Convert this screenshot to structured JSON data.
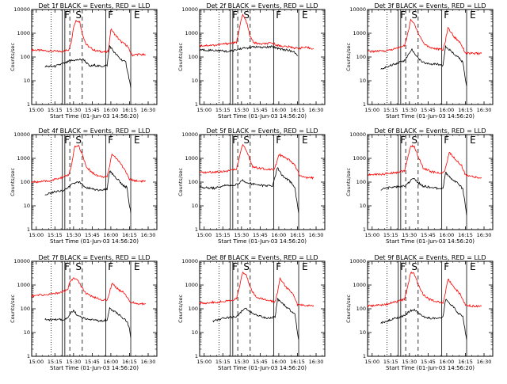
{
  "chart_data": [
    {
      "type": "line",
      "title": "Det 1f BLACK = Events, RED = LLD",
      "xlabel": "Start Time (01-Jun-03 14:56:20)",
      "ylabel": "Counts/sec",
      "xticks": [
        "15:00",
        "15:15",
        "15:30",
        "15:45",
        "16:00",
        "16:15",
        "16:30"
      ],
      "xlim": [
        "14:56:20",
        "16:37"
      ],
      "yscale": "log",
      "ylim": [
        1,
        10000
      ],
      "yticks": [
        "1",
        "10",
        "100",
        "1000",
        "10000"
      ],
      "markers": [
        "F",
        "S",
        "F",
        "E"
      ],
      "series": [
        {
          "color": "#ff0000",
          "x": [
            "14:56:20",
            "15:10",
            "15:20",
            "15:26",
            "15:28",
            "15:30",
            "15:32",
            "15:35",
            "15:37",
            "15:40",
            "15:43",
            "15:47",
            "15:52",
            "15:57",
            "15:58",
            "16:00",
            "16:04",
            "16:08",
            "16:13",
            "16:17",
            "16:22",
            "16:28"
          ],
          "y": [
            200,
            180,
            170,
            200,
            400,
            1800,
            3500,
            3000,
            1000,
            350,
            250,
            190,
            170,
            160,
            180,
            1500,
            800,
            450,
            300,
            120,
            130,
            120
          ]
        },
        {
          "color": "#000000",
          "x": [
            "15:07",
            "15:15",
            "15:20",
            "15:25",
            "15:27",
            "15:38",
            "15:43",
            "15:47",
            "15:52",
            "15:57",
            "15:59",
            "16:03",
            "16:08",
            "16:12",
            "16:15",
            "16:16"
          ],
          "y": [
            40,
            40,
            50,
            60,
            70,
            80,
            40,
            45,
            40,
            45,
            300,
            150,
            80,
            60,
            10,
            5
          ]
        }
      ]
    },
    {
      "type": "line",
      "title": "Det 2f BLACK = Events, RED = LLD",
      "xlabel": "Start Time (01-Jun-03 14:56:20)",
      "ylabel": "Counts/sec",
      "xticks": [
        "15:00",
        "15:15",
        "15:30",
        "15:45",
        "16:00",
        "16:15",
        "16:30"
      ],
      "xlim": [
        "14:56:20",
        "16:37"
      ],
      "yscale": "log",
      "ylim": [
        1,
        10000
      ],
      "yticks": [
        "1",
        "10",
        "100",
        "1000",
        "10000"
      ],
      "markers": [
        "F",
        "S",
        "F",
        "E"
      ],
      "series": [
        {
          "color": "#ff0000",
          "x": [
            "14:56:20",
            "15:10",
            "15:20",
            "15:26",
            "15:29",
            "15:31",
            "15:34",
            "15:37",
            "15:40",
            "15:45",
            "15:55",
            "16:00",
            "16:10",
            "16:15",
            "16:20",
            "16:28"
          ],
          "y": [
            300,
            320,
            380,
            400,
            2500,
            6000,
            3000,
            700,
            400,
            350,
            380,
            300,
            260,
            230,
            250,
            230
          ]
        },
        {
          "color": "#000000",
          "x": [
            "14:56:20",
            "15:10",
            "15:20",
            "15:26",
            "15:30",
            "15:35",
            "15:40",
            "15:45",
            "15:55",
            "16:00",
            "16:05",
            "16:10",
            "16:13",
            "16:15"
          ],
          "y": [
            200,
            190,
            170,
            200,
            230,
            240,
            270,
            250,
            270,
            230,
            200,
            180,
            150,
            110
          ]
        }
      ]
    },
    {
      "type": "line",
      "title": "Det 3f BLACK = Events, RED = LLD",
      "xlabel": "Start Time (01-Jun-03 14:56:20)",
      "ylabel": "Counts/sec",
      "xticks": [
        "15:00",
        "15:15",
        "15:30",
        "15:45",
        "16:00",
        "16:15",
        "16:30"
      ],
      "xlim": [
        "14:56:20",
        "16:37"
      ],
      "yscale": "log",
      "ylim": [
        1,
        10000
      ],
      "yticks": [
        "1",
        "10",
        "100",
        "1000",
        "10000"
      ],
      "markers": [
        "F",
        "S",
        "F",
        "E"
      ],
      "series": [
        {
          "color": "#ff0000",
          "x": [
            "14:56:20",
            "15:10",
            "15:20",
            "15:26",
            "15:28",
            "15:31",
            "15:34",
            "15:38",
            "15:42",
            "15:47",
            "15:52",
            "15:57",
            "15:59",
            "16:01",
            "16:06",
            "16:11",
            "16:15",
            "16:20",
            "16:28"
          ],
          "y": [
            170,
            180,
            230,
            300,
            700,
            3500,
            2500,
            800,
            350,
            250,
            220,
            200,
            500,
            1700,
            700,
            400,
            150,
            140,
            140
          ]
        },
        {
          "color": "#000000",
          "x": [
            "15:07",
            "15:15",
            "15:22",
            "15:26",
            "15:29",
            "15:32",
            "15:40",
            "15:47",
            "15:52",
            "15:57",
            "15:59",
            "16:04",
            "16:10",
            "16:13",
            "16:15",
            "16:16"
          ],
          "y": [
            30,
            45,
            60,
            70,
            120,
            200,
            60,
            50,
            50,
            45,
            300,
            160,
            90,
            60,
            10,
            6
          ]
        }
      ]
    },
    {
      "type": "line",
      "title": "Det 4f BLACK = Events, RED = LLD",
      "xlabel": "Start Time (01-Jun-03 14:56:20)",
      "ylabel": "Counts/sec",
      "xticks": [
        "15:00",
        "15:15",
        "15:30",
        "15:45",
        "16:00",
        "16:15",
        "16:30"
      ],
      "xlim": [
        "14:56:20",
        "16:37"
      ],
      "yscale": "log",
      "ylim": [
        1,
        10000
      ],
      "yticks": [
        "1",
        "10",
        "100",
        "1000",
        "10000"
      ],
      "markers": [
        "F",
        "S",
        "F",
        "E"
      ],
      "series": [
        {
          "color": "#ff0000",
          "x": [
            "14:56:20",
            "15:10",
            "15:20",
            "15:26",
            "15:28",
            "15:31",
            "15:34",
            "15:37",
            "15:40",
            "15:45",
            "15:50",
            "15:57",
            "15:59",
            "16:01",
            "16:06",
            "16:11",
            "16:15",
            "16:22",
            "16:28"
          ],
          "y": [
            100,
            110,
            150,
            200,
            400,
            3000,
            3500,
            1500,
            450,
            250,
            180,
            160,
            500,
            1600,
            800,
            350,
            130,
            110,
            110
          ]
        },
        {
          "color": "#000000",
          "x": [
            "15:07",
            "15:15",
            "15:22",
            "15:26",
            "15:30",
            "15:35",
            "15:40",
            "15:47",
            "15:52",
            "15:57",
            "15:59",
            "16:04",
            "16:10",
            "16:13",
            "16:15",
            "16:16"
          ],
          "y": [
            30,
            40,
            45,
            60,
            90,
            100,
            60,
            50,
            45,
            50,
            300,
            160,
            70,
            60,
            10,
            5
          ]
        }
      ]
    },
    {
      "type": "line",
      "title": "Det 5f BLACK = Events, RED = LLD",
      "xlabel": "Start Time (01-Jun-03 14:56:20)",
      "ylabel": "Counts/sec",
      "xticks": [
        "15:00",
        "15:15",
        "15:30",
        "15:45",
        "16:00",
        "16:15",
        "16:30"
      ],
      "xlim": [
        "14:56:20",
        "16:37"
      ],
      "yscale": "log",
      "ylim": [
        1,
        10000
      ],
      "yticks": [
        "1",
        "10",
        "100",
        "1000",
        "10000"
      ],
      "markers": [
        "F",
        "S",
        "F",
        "E"
      ],
      "series": [
        {
          "color": "#ff0000",
          "x": [
            "14:56:20",
            "15:10",
            "15:20",
            "15:26",
            "15:29",
            "15:31",
            "15:35",
            "15:39",
            "15:44",
            "15:50",
            "15:56",
            "15:58",
            "16:00",
            "16:04",
            "16:09",
            "16:13",
            "16:17",
            "16:22",
            "16:28"
          ],
          "y": [
            250,
            270,
            300,
            350,
            1500,
            4000,
            1500,
            450,
            380,
            350,
            350,
            600,
            1500,
            1100,
            800,
            500,
            180,
            150,
            150
          ]
        },
        {
          "color": "#000000",
          "x": [
            "14:56:20",
            "15:08",
            "15:16",
            "15:22",
            "15:27",
            "15:31",
            "15:36",
            "15:41",
            "15:48",
            "15:55",
            "15:59",
            "16:03",
            "16:08",
            "16:13",
            "16:15",
            "16:16"
          ],
          "y": [
            60,
            55,
            70,
            75,
            80,
            120,
            90,
            80,
            70,
            70,
            400,
            180,
            120,
            60,
            10,
            5
          ]
        }
      ]
    },
    {
      "type": "line",
      "title": "Det 6f BLACK = Events, RED = LLD",
      "xlabel": "Start Time (01-Jun-03 14:56:20)",
      "ylabel": "Counts/sec",
      "xticks": [
        "15:00",
        "15:15",
        "15:30",
        "15:45",
        "16:00",
        "16:15",
        "16:30"
      ],
      "xlim": [
        "14:56:20",
        "16:37"
      ],
      "yscale": "log",
      "ylim": [
        1,
        10000
      ],
      "yticks": [
        "1",
        "10",
        "100",
        "1000",
        "10000"
      ],
      "markers": [
        "F",
        "S",
        "F",
        "E"
      ],
      "series": [
        {
          "color": "#ff0000",
          "x": [
            "14:56:20",
            "15:10",
            "15:20",
            "15:26",
            "15:28",
            "15:31",
            "15:34",
            "15:37",
            "15:41",
            "15:47",
            "15:53",
            "15:58",
            "16:00",
            "16:02",
            "16:07",
            "16:12",
            "16:15",
            "16:22",
            "16:28"
          ],
          "y": [
            200,
            220,
            260,
            300,
            700,
            3500,
            3000,
            1200,
            400,
            280,
            240,
            260,
            600,
            1800,
            900,
            500,
            200,
            160,
            150
          ]
        },
        {
          "color": "#000000",
          "x": [
            "15:07",
            "15:15",
            "15:22",
            "15:27",
            "15:30",
            "15:33",
            "15:40",
            "15:47",
            "15:52",
            "15:57",
            "15:59",
            "16:04",
            "16:10",
            "16:13",
            "16:15",
            "16:16"
          ],
          "y": [
            50,
            60,
            65,
            70,
            100,
            150,
            70,
            60,
            55,
            55,
            250,
            140,
            80,
            50,
            10,
            4
          ]
        }
      ]
    },
    {
      "type": "line",
      "title": "Det 7f BLACK = Events, RED = LLD",
      "xlabel": "Start Time (01-Jun-03 14:56:20)",
      "ylabel": "Counts/sec",
      "xticks": [
        "15:00",
        "15:15",
        "15:30",
        "15:45",
        "16:00",
        "16:15",
        "16:30"
      ],
      "xlim": [
        "14:56:20",
        "16:37"
      ],
      "yscale": "log",
      "ylim": [
        1,
        10000
      ],
      "yticks": [
        "1",
        "10",
        "100",
        "1000",
        "10000"
      ],
      "markers": [
        "F",
        "S",
        "F",
        "E"
      ],
      "series": [
        {
          "color": "#ff0000",
          "x": [
            "14:56:20",
            "15:10",
            "15:20",
            "15:25",
            "15:27",
            "15:30",
            "15:33",
            "15:36",
            "15:40",
            "15:45",
            "15:50",
            "15:57",
            "15:59",
            "16:01",
            "16:06",
            "16:11",
            "16:15",
            "16:20",
            "16:28"
          ],
          "y": [
            350,
            400,
            500,
            600,
            1300,
            2000,
            1800,
            900,
            450,
            320,
            260,
            220,
            500,
            1200,
            650,
            450,
            200,
            170,
            160
          ]
        },
        {
          "color": "#000000",
          "x": [
            "15:07",
            "15:15",
            "15:22",
            "15:26",
            "15:30",
            "15:33",
            "15:38",
            "15:45",
            "15:52",
            "15:57",
            "15:59",
            "16:04",
            "16:10",
            "16:13",
            "16:15",
            "16:16"
          ],
          "y": [
            35,
            35,
            35,
            45,
            90,
            50,
            40,
            35,
            30,
            35,
            100,
            70,
            40,
            30,
            15,
            6
          ]
        }
      ]
    },
    {
      "type": "line",
      "title": "Det 8f BLACK = Events, RED = LLD",
      "xlabel": "Start Time (01-Jun-03 14:56:20)",
      "ylabel": "Counts/sec",
      "xticks": [
        "15:00",
        "15:15",
        "15:30",
        "15:45",
        "16:00",
        "16:15",
        "16:30"
      ],
      "xlim": [
        "14:56:20",
        "16:37"
      ],
      "yscale": "log",
      "ylim": [
        1,
        10000
      ],
      "yticks": [
        "1",
        "10",
        "100",
        "1000",
        "10000"
      ],
      "markers": [
        "F",
        "S",
        "F",
        "E"
      ],
      "series": [
        {
          "color": "#ff0000",
          "x": [
            "14:56:20",
            "15:10",
            "15:20",
            "15:26",
            "15:28",
            "15:31",
            "15:34",
            "15:37",
            "15:41",
            "15:46",
            "15:52",
            "15:57",
            "15:59",
            "16:01",
            "16:06",
            "16:11",
            "16:15",
            "16:20",
            "16:28"
          ],
          "y": [
            170,
            190,
            220,
            260,
            700,
            3500,
            2500,
            800,
            350,
            260,
            220,
            200,
            500,
            2000,
            800,
            450,
            150,
            140,
            140
          ]
        },
        {
          "color": "#000000",
          "x": [
            "15:07",
            "15:15",
            "15:22",
            "15:27",
            "15:30",
            "15:34",
            "15:40",
            "15:47",
            "15:52",
            "15:57",
            "15:59",
            "16:04",
            "16:10",
            "16:13",
            "16:15",
            "16:16"
          ],
          "y": [
            30,
            40,
            45,
            50,
            80,
            100,
            60,
            45,
            40,
            45,
            250,
            150,
            80,
            60,
            10,
            5
          ]
        }
      ]
    },
    {
      "type": "line",
      "title": "Det 9f BLACK = Events, RED = LLD",
      "xlabel": "Start Time (01-Jun-03 14:56:20)",
      "ylabel": "Counts/sec",
      "xticks": [
        "15:00",
        "15:15",
        "15:30",
        "15:45",
        "16:00",
        "16:15",
        "16:30"
      ],
      "xlim": [
        "14:56:20",
        "16:37"
      ],
      "yscale": "log",
      "ylim": [
        1,
        10000
      ],
      "yticks": [
        "1",
        "10",
        "100",
        "1000",
        "10000"
      ],
      "markers": [
        "F",
        "S",
        "F",
        "E"
      ],
      "series": [
        {
          "color": "#ff0000",
          "x": [
            "14:56:20",
            "15:10",
            "15:20",
            "15:26",
            "15:28",
            "15:31",
            "15:34",
            "15:37",
            "15:41",
            "15:46",
            "15:52",
            "15:57",
            "15:59",
            "16:01",
            "16:06",
            "16:11",
            "16:15",
            "16:20",
            "16:28"
          ],
          "y": [
            130,
            150,
            200,
            250,
            600,
            3500,
            3000,
            1000,
            400,
            250,
            200,
            180,
            500,
            1800,
            800,
            400,
            150,
            130,
            130
          ]
        },
        {
          "color": "#000000",
          "x": [
            "15:07",
            "15:15",
            "15:22",
            "15:27",
            "15:30",
            "15:34",
            "15:40",
            "15:47",
            "15:52",
            "15:57",
            "15:59",
            "16:04",
            "16:10",
            "16:13",
            "16:15",
            "16:16"
          ],
          "y": [
            25,
            35,
            45,
            55,
            80,
            90,
            50,
            40,
            40,
            45,
            250,
            140,
            60,
            50,
            10,
            5
          ]
        }
      ]
    }
  ]
}
